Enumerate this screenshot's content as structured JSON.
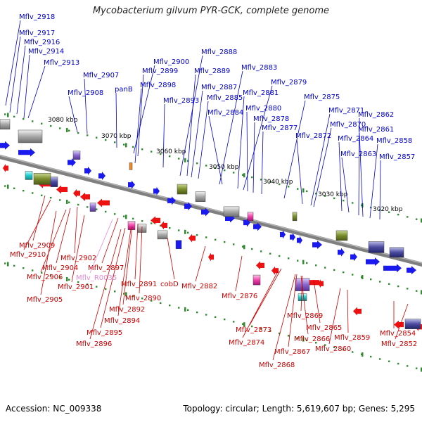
{
  "title": "Mycobacterium gilvum PYR-GCK, complete genome",
  "footer": {
    "accession": "Accession: NC_009338",
    "summary": "Topology: circular; Length: 5,619,607 bp; Genes: 5,295"
  },
  "scale_labels": [
    "3080 kbp",
    "3070 kbp",
    "3060 kbp",
    "3050 kbp",
    "3040 kbp",
    "3030 kbp",
    "3020 kbp"
  ],
  "upper_genes": [
    "Mflv_2918",
    "Mflv_2917",
    "Mflv_2916",
    "Mflv_2914",
    "Mflv_2913",
    "Mflv_2908",
    "Mflv_2907",
    "panB",
    "Mflv_2900",
    "Mflv_2899",
    "Mflv_2898",
    "Mflv_2893",
    "Mflv_2888",
    "Mflv_2889",
    "Mflv_2887",
    "Mflv_2885",
    "Mflv_2883",
    "Mflv_2884",
    "Mflv_2881",
    "Mflv_2879",
    "Mflv_2880",
    "Mflv_2878",
    "Mflv_2877",
    "Mflv_2875",
    "Mflv_2872",
    "Mflv_2871",
    "Mflv_2870",
    "Mflv_2864",
    "Mflv_2863",
    "Mflv_2862",
    "Mflv_2861",
    "Mflv_2858",
    "Mflv_2857"
  ],
  "lower_genes": [
    "Mflv_2909",
    "Mflv_2910",
    "Mflv_2902",
    "Mflv_2904",
    "Mflv_2906",
    "Mflv_2901",
    "Mflv_2905",
    "Mflv_2897",
    "Mflv_R0035",
    "Mflv_2891",
    "Mflv_2890",
    "Mflv_2892",
    "Mflv_2894",
    "Mflv_2895",
    "Mflv_2896",
    "cobD",
    "Mflv_2882",
    "Mflv_2876",
    "Mflv_2873",
    "Mflv_2874",
    "Mflv_2869",
    "Mflv_2866",
    "Mflv_2867",
    "Mflv_2868",
    "Mflv_2865",
    "Mflv_2859",
    "Mflv_2860",
    "Mflv_2854",
    "Mflv_2852"
  ],
  "colors": {
    "forward_label": "#0000cc",
    "reverse_label": "#cc0000",
    "rna_label": "#e88ad8",
    "backbone": "#808080",
    "forward_gene": "#1a1aee",
    "reverse_gene": "#ee1111",
    "tick": "#2e8b2e"
  }
}
